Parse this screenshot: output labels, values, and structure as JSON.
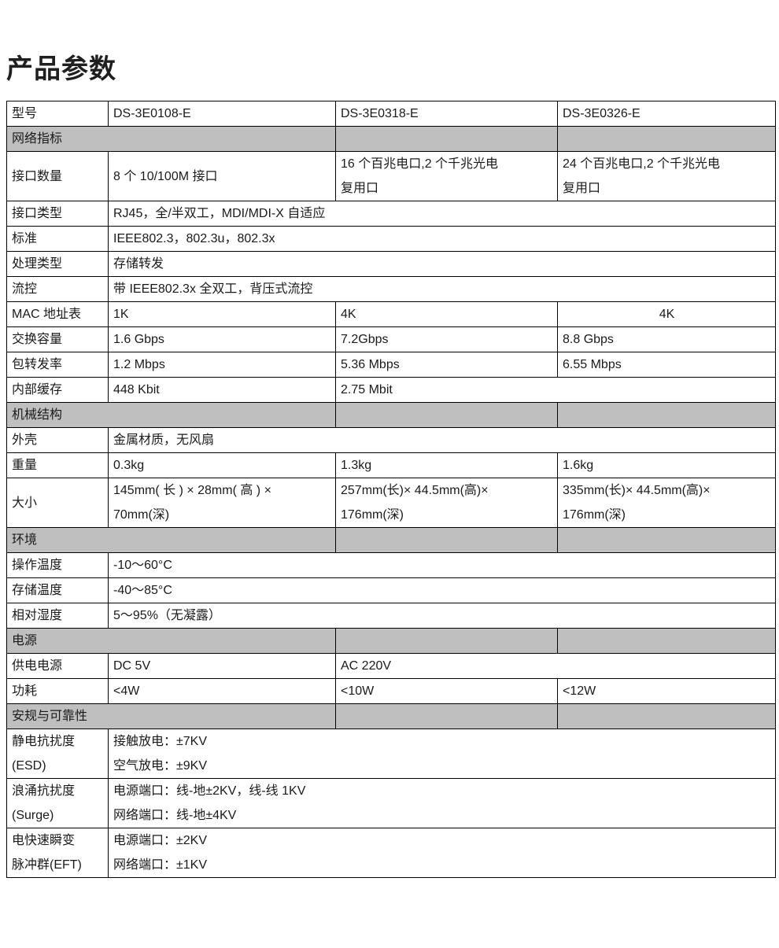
{
  "page_title": "产品参数",
  "table": {
    "rows": [
      {
        "type": "data",
        "cells": [
          {
            "text": "型号"
          },
          {
            "text": "DS-3E0108-E"
          },
          {
            "text": "DS-3E0318-E"
          },
          {
            "text": "DS-3E0326-E"
          }
        ]
      },
      {
        "type": "section",
        "cells": [
          {
            "text": "网络指标",
            "span": 2
          },
          {
            "text": ""
          },
          {
            "text": ""
          }
        ]
      },
      {
        "type": "data",
        "cells": [
          {
            "text": "接口数量"
          },
          {
            "text": "8 个 10/100M 接口"
          },
          {
            "text": "16 个百兆电口,2 个千兆光电\n复用口"
          },
          {
            "text": "24 个百兆电口,2 个千兆光电\n复用口"
          }
        ]
      },
      {
        "type": "data",
        "cells": [
          {
            "text": "接口类型"
          },
          {
            "text": "RJ45，全/半双工，MDI/MDI-X 自适应",
            "span": 3
          }
        ]
      },
      {
        "type": "data",
        "cells": [
          {
            "text": "标准"
          },
          {
            "text": "IEEE802.3，802.3u，802.3x",
            "span": 3
          }
        ]
      },
      {
        "type": "data",
        "cells": [
          {
            "text": "处理类型"
          },
          {
            "text": "存储转发",
            "span": 3
          }
        ]
      },
      {
        "type": "data",
        "cells": [
          {
            "text": "流控"
          },
          {
            "text": "带 IEEE802.3x 全双工，背压式流控",
            "span": 3
          }
        ]
      },
      {
        "type": "data",
        "cells": [
          {
            "text": "MAC 地址表"
          },
          {
            "text": "1K"
          },
          {
            "text": "4K"
          },
          {
            "text": "4K",
            "align": "center"
          }
        ]
      },
      {
        "type": "data",
        "cells": [
          {
            "text": "交换容量"
          },
          {
            "text": "1.6 Gbps"
          },
          {
            "text": "7.2Gbps"
          },
          {
            "text": "8.8 Gbps"
          }
        ]
      },
      {
        "type": "data",
        "cells": [
          {
            "text": "包转发率"
          },
          {
            "text": "1.2 Mbps"
          },
          {
            "text": "5.36 Mbps"
          },
          {
            "text": "6.55 Mbps"
          }
        ]
      },
      {
        "type": "data",
        "cells": [
          {
            "text": "内部缓存"
          },
          {
            "text": "448 Kbit"
          },
          {
            "text": "2.75 Mbit",
            "span": 2
          }
        ]
      },
      {
        "type": "section",
        "cells": [
          {
            "text": "机械结构",
            "span": 2
          },
          {
            "text": ""
          },
          {
            "text": ""
          }
        ]
      },
      {
        "type": "data",
        "cells": [
          {
            "text": "外壳"
          },
          {
            "text": "金属材质，无风扇",
            "span": 3
          }
        ]
      },
      {
        "type": "data",
        "cells": [
          {
            "text": "重量"
          },
          {
            "text": "0.3kg"
          },
          {
            "text": "1.3kg"
          },
          {
            "text": "1.6kg"
          }
        ]
      },
      {
        "type": "data",
        "cells": [
          {
            "text": "大小"
          },
          {
            "text": "145mm( 长 ) × 28mm( 高 ) ×\n70mm(深)"
          },
          {
            "text": "257mm(长)× 44.5mm(高)×\n176mm(深)"
          },
          {
            "text": "335mm(长)× 44.5mm(高)×\n176mm(深)"
          }
        ]
      },
      {
        "type": "section",
        "cells": [
          {
            "text": "环境",
            "span": 2
          },
          {
            "text": ""
          },
          {
            "text": ""
          }
        ]
      },
      {
        "type": "data",
        "cells": [
          {
            "text": "操作温度"
          },
          {
            "text": "-10～60°C",
            "span": 3
          }
        ]
      },
      {
        "type": "data",
        "cells": [
          {
            "text": "存储温度"
          },
          {
            "text": "-40～85°C",
            "span": 3
          }
        ]
      },
      {
        "type": "data",
        "cells": [
          {
            "text": "相对湿度"
          },
          {
            "text": "5～95%（无凝露）",
            "span": 3
          }
        ]
      },
      {
        "type": "section",
        "cells": [
          {
            "text": "电源",
            "span": 2
          },
          {
            "text": ""
          },
          {
            "text": ""
          }
        ]
      },
      {
        "type": "data",
        "cells": [
          {
            "text": "供电电源"
          },
          {
            "text": "DC 5V"
          },
          {
            "text": "AC 220V",
            "span": 2
          }
        ]
      },
      {
        "type": "data",
        "cells": [
          {
            "text": "功耗"
          },
          {
            "text": "<4W"
          },
          {
            "text": "<10W"
          },
          {
            "text": "<12W"
          }
        ]
      },
      {
        "type": "section",
        "cells": [
          {
            "text": "安规与可靠性",
            "span": 2
          },
          {
            "text": ""
          },
          {
            "text": ""
          }
        ]
      },
      {
        "type": "data",
        "cells": [
          {
            "text": "静电抗扰度\n(ESD)"
          },
          {
            "text": "接触放电：±7KV\n空气放电：±9KV",
            "span": 3
          }
        ]
      },
      {
        "type": "data",
        "cells": [
          {
            "text": "浪涌抗扰度\n(Surge)"
          },
          {
            "text": "电源端口：线-地±2KV，线-线 1KV\n网络端口：线-地±4KV",
            "span": 3
          }
        ]
      },
      {
        "type": "data",
        "cells": [
          {
            "text": "电快速瞬变\n脉冲群(EFT)"
          },
          {
            "text": "电源端口：±2KV\n网络端口：±1KV",
            "span": 3
          }
        ]
      }
    ]
  }
}
